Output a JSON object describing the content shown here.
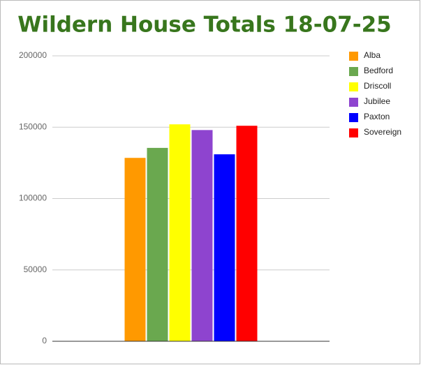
{
  "chart_data": {
    "type": "bar",
    "title": "Wildern House Totals 18-07-25",
    "categories": [
      null
    ],
    "series": [
      {
        "name": "Alba",
        "color": "#ff9900",
        "values": [
          128500
        ]
      },
      {
        "name": "Bedford",
        "color": "#6aa84f",
        "values": [
          135500
        ]
      },
      {
        "name": "Driscoll",
        "color": "#ffff00",
        "values": [
          152000
        ]
      },
      {
        "name": "Jubilee",
        "color": "#8e44cf",
        "values": [
          148000
        ]
      },
      {
        "name": "Paxton",
        "color": "#0000ff",
        "values": [
          131000
        ]
      },
      {
        "name": "Sovereign",
        "color": "#ff0000",
        "values": [
          151000
        ]
      }
    ],
    "ylim": [
      0,
      200000
    ],
    "yticks": [
      0,
      50000,
      100000,
      150000,
      200000
    ],
    "grid": true,
    "legend": "right"
  }
}
